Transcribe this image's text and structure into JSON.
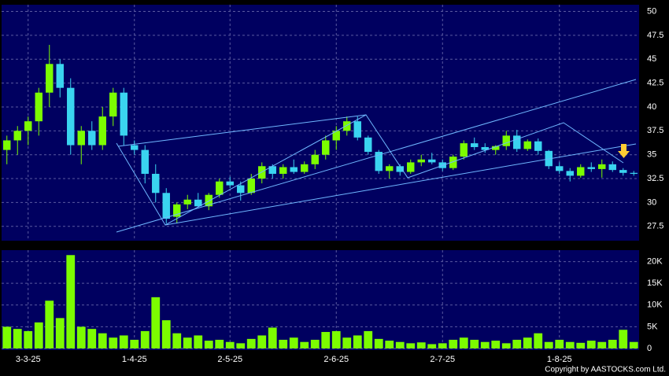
{
  "chart_data": {
    "type": "candlestick",
    "categories": [
      null,
      null,
      "3-3-25",
      null,
      null,
      null,
      null,
      null,
      null,
      null,
      null,
      null,
      "1-4-25",
      null,
      null,
      null,
      null,
      null,
      null,
      null,
      null,
      "2-5-25",
      null,
      null,
      null,
      null,
      null,
      null,
      null,
      null,
      null,
      "2-6-25",
      null,
      null,
      null,
      null,
      null,
      null,
      null,
      null,
      null,
      "2-7-25",
      null,
      null,
      null,
      null,
      null,
      null,
      null,
      null,
      null,
      null,
      "1-8-25",
      null,
      null,
      null,
      null,
      null,
      null,
      null
    ],
    "open": [
      35.5,
      36.5,
      37.5,
      38.5,
      41.5,
      44.5,
      42,
      36,
      37.5,
      36,
      39,
      41.5,
      36,
      35.5,
      33,
      31,
      28.5,
      29.8,
      30.3,
      29.6,
      30.8,
      32.2,
      31.8,
      31,
      32.5,
      33.8,
      33,
      33.7,
      33.2,
      34,
      35,
      36.5,
      37.5,
      38.5,
      36.8,
      35.3,
      33.3,
      33.8,
      33.2,
      34.2,
      34.5,
      34.2,
      33.6,
      34.8,
      36.2,
      35.8,
      35.5,
      35.9,
      37,
      35.6,
      36.4,
      35.4,
      33.8,
      33.3,
      32.8,
      33.7,
      33.5,
      34,
      33.4,
      33.1
    ],
    "high": [
      37,
      38,
      39,
      42,
      46.5,
      45,
      43,
      38,
      38.5,
      40,
      42,
      42,
      36.5,
      36,
      34,
      31.5,
      30,
      30.8,
      31,
      31,
      32.5,
      32.7,
      32.2,
      33,
      34.2,
      34,
      34,
      34.5,
      34.3,
      35.5,
      37,
      38,
      39,
      39,
      37,
      35.5,
      34,
      34,
      34.5,
      35,
      35.2,
      34.5,
      35,
      36.5,
      36.8,
      36.2,
      36,
      37.5,
      37.6,
      36.6,
      36.7,
      35.5,
      34.2,
      33.6,
      34,
      34.2,
      34.5,
      34.3,
      33.6,
      33.3
    ],
    "low": [
      34,
      35,
      36,
      37,
      40,
      41,
      35,
      34,
      35.5,
      35.5,
      38,
      36,
      35,
      32,
      30,
      27.8,
      27.8,
      29.3,
      29.5,
      29.2,
      30.5,
      31.5,
      30.2,
      30.8,
      32,
      32.5,
      32.5,
      33,
      33,
      33.5,
      34.5,
      35.5,
      37,
      36.5,
      35,
      33,
      32.5,
      32.8,
      33,
      33.8,
      34,
      33.3,
      33.4,
      34.5,
      35.5,
      35.2,
      35,
      35.5,
      35.3,
      35.4,
      35,
      33.5,
      33,
      32.2,
      32.6,
      33.2,
      32.6,
      33.2,
      32.8,
      32.8
    ],
    "close": [
      36.5,
      37.5,
      38.5,
      41.5,
      44.5,
      42,
      36,
      37.5,
      36,
      39,
      41.5,
      37,
      35.5,
      33,
      31,
      28.3,
      29.8,
      30.3,
      29.6,
      30.8,
      32.2,
      31.8,
      31,
      32.5,
      33.8,
      33,
      33.7,
      33.2,
      34,
      35,
      36.5,
      37.5,
      38.5,
      36.8,
      35.3,
      33.3,
      33.8,
      33.2,
      34.2,
      34.5,
      34.2,
      33.6,
      34.8,
      36.2,
      35.8,
      35.5,
      35.9,
      37,
      35.6,
      36.4,
      35.4,
      33.8,
      33.3,
      32.8,
      33.7,
      33.5,
      34,
      33.4,
      33.1,
      33
    ],
    "volume": [
      5000,
      4500,
      4000,
      6000,
      11000,
      7000,
      21500,
      5000,
      4500,
      3500,
      2500,
      3000,
      2000,
      4000,
      11800,
      6500,
      3500,
      2500,
      3000,
      1800,
      2000,
      1500,
      1200,
      2200,
      3000,
      4800,
      2000,
      2500,
      1500,
      2000,
      3800,
      4000,
      2500,
      3000,
      4000,
      2200,
      1800,
      1500,
      1200,
      1400,
      1000,
      1200,
      2000,
      2500,
      2000,
      1500,
      1800,
      1200,
      2000,
      2500,
      3500,
      1500,
      2000,
      1500,
      1300,
      1800,
      1500,
      2000,
      4300,
      1500
    ],
    "up_color": "#7cfc00",
    "down_color": "#3ad4f0",
    "volume_color": "#7cfc00",
    "ylim": [
      26,
      50.7
    ],
    "yticks": [
      27.5,
      30,
      32.5,
      35,
      37.5,
      40,
      42.5,
      45,
      47.5,
      50
    ],
    "y2lim": [
      0,
      23000
    ],
    "y2ticks": [
      0,
      {
        "value": 5000,
        "label": "5K"
      },
      {
        "value": 10000,
        "label": "10K"
      },
      {
        "value": 15000,
        "label": "15K"
      },
      {
        "value": 20000,
        "label": "20K"
      }
    ],
    "grid": true,
    "copyright": "Copyright by AASTOCKS.com Ltd."
  }
}
